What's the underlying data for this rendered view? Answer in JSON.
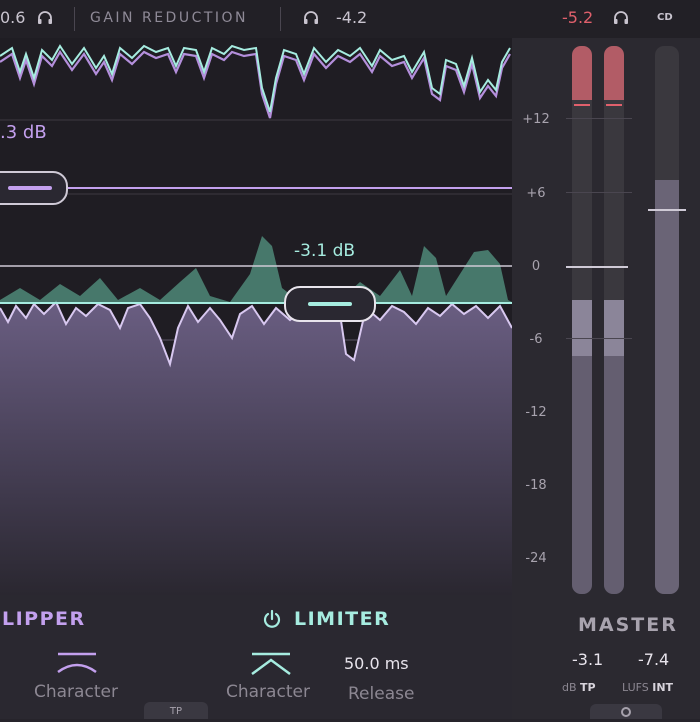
{
  "header": {
    "left_value": "0.6",
    "headphone_icon": "headphone-icon",
    "section_label": "GAIN REDUCTION",
    "gr_value": "-4.2",
    "master_peak": "-5.2",
    "cd_label": "CD"
  },
  "display": {
    "clipper_threshold_label": ".3 dB",
    "limiter_threshold_label": "-3.1 dB",
    "scale": [
      "+12",
      "+6",
      "0",
      "-6",
      "-12",
      "-18",
      "-24"
    ]
  },
  "clipper": {
    "title": "LIPPER",
    "character_label": "Character"
  },
  "limiter": {
    "title": "LIMITER",
    "power_icon": "power-icon",
    "character_label": "Character",
    "release_value": "50.0 ms",
    "release_label": "Release",
    "tp_tab": "TP"
  },
  "master": {
    "title": "MASTER",
    "true_peak_value": "-3.1",
    "true_peak_unit": "dB",
    "true_peak_suffix": "TP",
    "lufs_value": "-7.4",
    "lufs_unit": "LUFS",
    "lufs_suffix": "INT"
  },
  "colors": {
    "purple": "#c3a0ee",
    "mint": "#9fe3cc",
    "peak_red": "#e0606c",
    "background": "#26242b"
  }
}
